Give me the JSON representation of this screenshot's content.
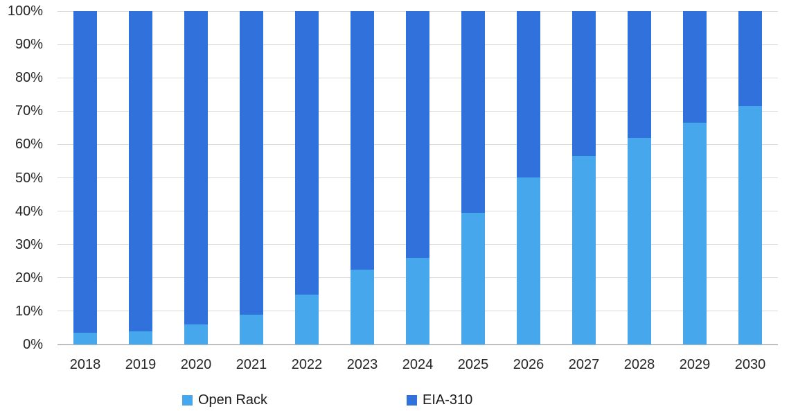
{
  "chart_data": {
    "type": "bar",
    "stacked": true,
    "percent_stacked": true,
    "title": "",
    "xlabel": "",
    "ylabel": "",
    "categories": [
      "2018",
      "2019",
      "2020",
      "2021",
      "2022",
      "2023",
      "2024",
      "2025",
      "2026",
      "2027",
      "2028",
      "2029",
      "2030"
    ],
    "series": [
      {
        "name": "Open Rack",
        "color": "#47A7EC",
        "values": [
          3.5,
          4,
          6,
          9,
          15,
          22.5,
          26,
          39.5,
          50,
          56.5,
          62,
          66.5,
          71.5
        ]
      },
      {
        "name": "EIA-310",
        "color": "#3071DB",
        "values": [
          96.5,
          96,
          94,
          91,
          85,
          77.5,
          74,
          60.5,
          50,
          43.5,
          38,
          33.5,
          28.5
        ]
      }
    ],
    "ylim": [
      0,
      100
    ],
    "ytick_step": 10,
    "ytick_suffix": "%",
    "yticks": [
      "0%",
      "10%",
      "20%",
      "30%",
      "40%",
      "50%",
      "60%",
      "70%",
      "80%",
      "90%",
      "100%"
    ],
    "grid": true,
    "legend_position": "bottom"
  },
  "colors": {
    "open_rack": "#47A7EC",
    "eia_310": "#3071DB",
    "gridline": "#d9d9d9",
    "axis_line": "#bfbfbf",
    "label_text": "#262626"
  }
}
